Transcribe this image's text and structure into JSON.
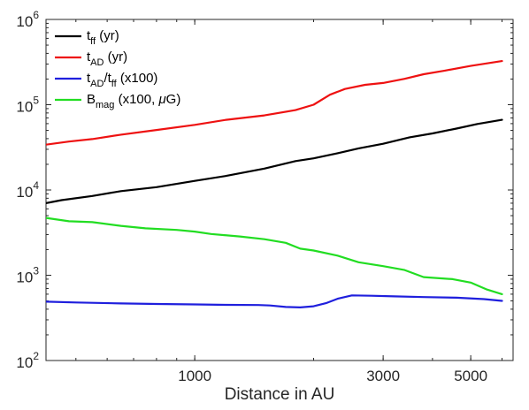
{
  "chart_data": {
    "type": "line",
    "title": "",
    "xlabel": "Distance in AU",
    "ylabel": "",
    "xscale": "log",
    "yscale": "log",
    "xlim": [
      420,
      6400
    ],
    "ylim": [
      100,
      1000000
    ],
    "grid": false,
    "legend_position": "top-left",
    "x_ticks": [
      {
        "value": 1000,
        "label": "1000"
      },
      {
        "value": 3000,
        "label": "3000"
      },
      {
        "value": 5000,
        "label": "5000"
      }
    ],
    "y_ticks": [
      {
        "value": 100,
        "base": "10",
        "exp": "2"
      },
      {
        "value": 1000,
        "base": "10",
        "exp": "3"
      },
      {
        "value": 10000,
        "base": "10",
        "exp": "4"
      },
      {
        "value": 100000,
        "base": "10",
        "exp": "5"
      },
      {
        "value": 1000000,
        "base": "10",
        "exp": "6"
      }
    ],
    "series": [
      {
        "key": "t_ff",
        "legend_parts": [
          {
            "text": "t",
            "sub": false
          },
          {
            "text": "ff",
            "sub": true
          },
          {
            "text": " (yr)",
            "sub": false
          }
        ],
        "color": "#000000",
        "x": [
          420,
          460,
          550,
          650,
          800,
          1000,
          1200,
          1500,
          1800,
          2000,
          2300,
          2600,
          3000,
          3500,
          4000,
          4600,
          5200,
          6000
        ],
        "y": [
          7000,
          7600,
          8500,
          9700,
          10800,
          12800,
          14600,
          17800,
          21800,
          23500,
          27000,
          30800,
          34800,
          41500,
          46000,
          52500,
          59500,
          66500
        ]
      },
      {
        "key": "t_AD",
        "legend_parts": [
          {
            "text": "t",
            "sub": false
          },
          {
            "text": "AD",
            "sub": true
          },
          {
            "text": " (yr)",
            "sub": false
          }
        ],
        "color": "#ee1111",
        "x": [
          420,
          480,
          550,
          650,
          800,
          1000,
          1200,
          1500,
          1800,
          2000,
          2200,
          2400,
          2700,
          3000,
          3400,
          3800,
          4300,
          5000,
          6000
        ],
        "y": [
          34000,
          37000,
          39500,
          44500,
          50500,
          58000,
          66500,
          75000,
          86500,
          100000,
          131000,
          153000,
          171000,
          180000,
          201000,
          228000,
          251000,
          285000,
          325000
        ]
      },
      {
        "key": "t_AD_over_t_ff",
        "legend_parts": [
          {
            "text": "t",
            "sub": false
          },
          {
            "text": "AD",
            "sub": true
          },
          {
            "text": "/t",
            "sub": false
          },
          {
            "text": "ff",
            "sub": true
          },
          {
            "text": " (x100)",
            "sub": false
          }
        ],
        "color": "#1f1fdd",
        "x": [
          420,
          500,
          650,
          800,
          1000,
          1200,
          1450,
          1550,
          1700,
          1850,
          2000,
          2150,
          2300,
          2500,
          2800,
          3200,
          3800,
          4600,
          5400,
          6000
        ],
        "y": [
          490,
          480,
          467,
          460,
          455,
          450,
          448,
          442,
          425,
          420,
          433,
          470,
          530,
          580,
          575,
          565,
          555,
          545,
          525,
          500
        ]
      },
      {
        "key": "B_mag",
        "legend_parts": [
          {
            "text": "B",
            "sub": false
          },
          {
            "text": "mag",
            "sub": true
          },
          {
            "text": " (x100, ",
            "sub": false
          },
          {
            "text": "μ",
            "sub": false,
            "italic": true
          },
          {
            "text": "G)",
            "sub": false
          }
        ],
        "color": "#22dd22",
        "x": [
          420,
          480,
          550,
          650,
          750,
          900,
          1000,
          1100,
          1300,
          1500,
          1700,
          1850,
          2000,
          2300,
          2600,
          3000,
          3400,
          3800,
          4500,
          5000,
          5500,
          6000
        ],
        "y": [
          4700,
          4300,
          4200,
          3800,
          3550,
          3400,
          3250,
          3050,
          2850,
          2650,
          2400,
          2050,
          1950,
          1700,
          1420,
          1280,
          1150,
          950,
          900,
          820,
          680,
          600
        ]
      }
    ]
  }
}
